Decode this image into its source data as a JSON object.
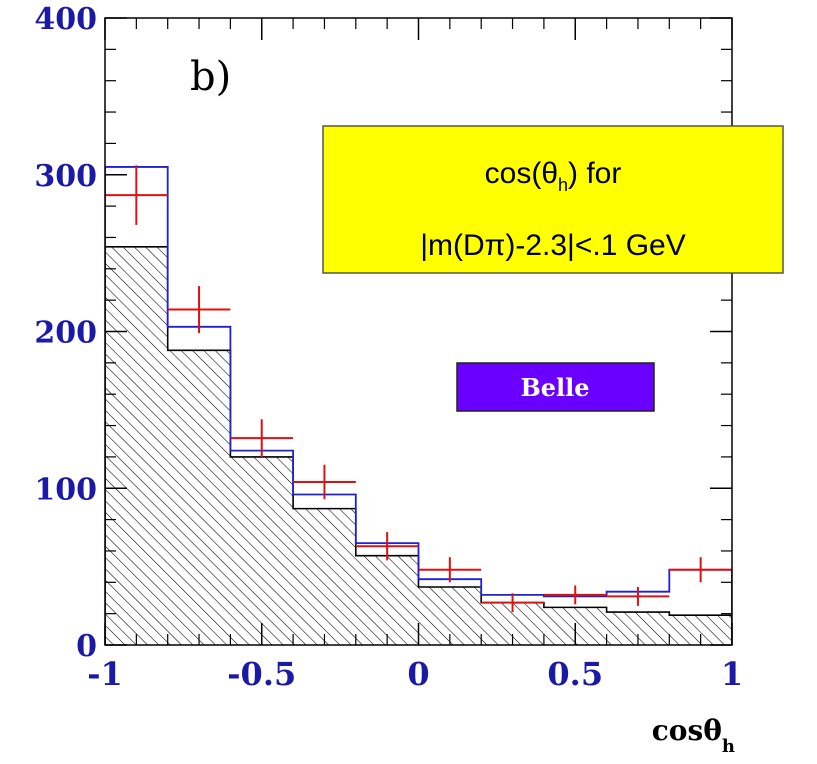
{
  "chart_data": {
    "type": "bar",
    "panel_label": "b)",
    "xlabel": "cosθ",
    "xlabel_subscript": "h",
    "xlim": [
      -1,
      1
    ],
    "ylim": [
      0,
      400
    ],
    "x_ticks": [
      "-1",
      "-0.5",
      "0",
      "0.5",
      "1"
    ],
    "y_ticks": [
      "0",
      "100",
      "200",
      "300",
      "400"
    ],
    "bin_edges": [
      -1,
      -0.8,
      -0.6,
      -0.4,
      -0.2,
      0,
      0.2,
      0.4,
      0.6,
      0.8,
      1
    ],
    "series": [
      {
        "style": "step-line",
        "color": "#1f1fd6",
        "values": [
          305,
          203,
          124,
          96,
          65,
          42,
          32,
          31,
          34,
          48
        ]
      },
      {
        "style": "hatched-step",
        "color": "#000000",
        "values": [
          254,
          188,
          120,
          87,
          57,
          37,
          27,
          24,
          21,
          19
        ]
      },
      {
        "style": "points-with-errors",
        "color": "#e01010",
        "x": [
          -0.9,
          -0.7,
          -0.5,
          -0.3,
          -0.1,
          0.1,
          0.3,
          0.5,
          0.7,
          0.9
        ],
        "values": [
          287,
          214,
          132,
          104,
          63,
          48,
          27,
          32,
          31,
          48
        ],
        "errors": [
          19,
          15,
          12,
          11,
          9,
          8,
          6,
          6,
          6,
          8
        ]
      }
    ],
    "annotations": {
      "info_box": {
        "line1_prefix": "cos(θ",
        "line1_sub": "h",
        "line1_suffix": ") for",
        "line2": "|m(Dπ)-2.3|<.1 GeV",
        "background": "#ffff00"
      },
      "experiment_badge": {
        "text": "Belle",
        "background": "#6a00ff"
      }
    }
  }
}
